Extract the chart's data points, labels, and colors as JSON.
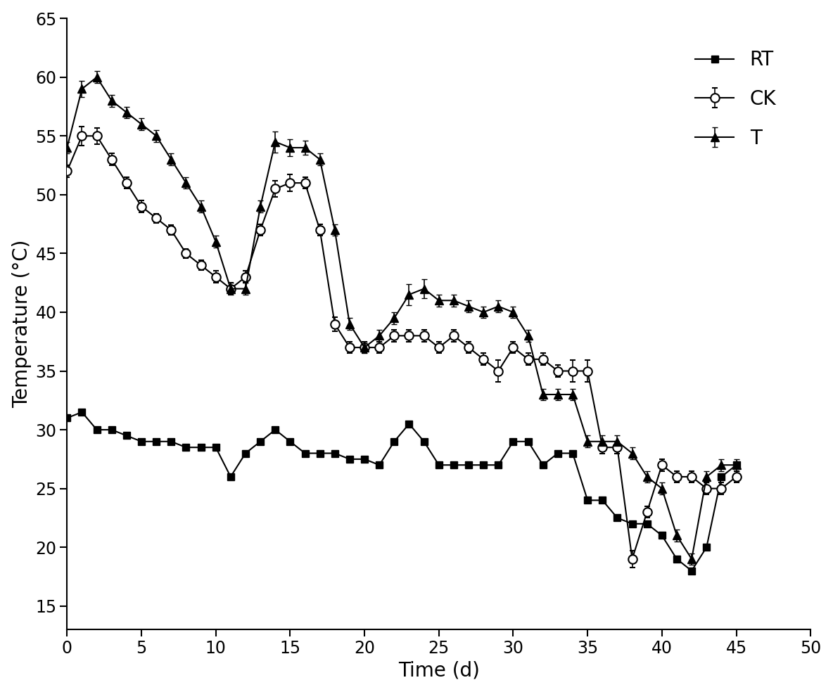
{
  "RT_x": [
    0,
    1,
    2,
    3,
    4,
    5,
    6,
    7,
    8,
    9,
    10,
    11,
    12,
    13,
    14,
    15,
    16,
    17,
    18,
    19,
    20,
    21,
    22,
    23,
    24,
    25,
    26,
    27,
    28,
    29,
    30,
    31,
    32,
    33,
    34,
    35,
    36,
    37,
    38,
    39,
    40,
    41,
    42,
    43,
    44,
    45
  ],
  "RT_y": [
    31,
    31.5,
    30,
    30,
    29.5,
    29,
    29,
    29,
    28.5,
    28.5,
    28.5,
    26,
    28,
    29,
    30,
    29,
    28,
    28,
    28,
    27.5,
    27.5,
    27,
    29,
    30.5,
    29,
    27,
    27,
    27,
    27,
    27,
    29,
    29,
    27,
    28,
    28,
    24,
    24,
    22.5,
    22,
    22,
    21,
    19,
    18,
    20,
    26,
    27
  ],
  "CK_x": [
    0,
    1,
    2,
    3,
    4,
    5,
    6,
    7,
    8,
    9,
    10,
    11,
    12,
    13,
    14,
    15,
    16,
    17,
    18,
    19,
    20,
    21,
    22,
    23,
    24,
    25,
    26,
    27,
    28,
    29,
    30,
    31,
    32,
    33,
    34,
    35,
    36,
    37,
    38,
    39,
    40,
    41,
    42,
    43,
    44,
    45
  ],
  "CK_y": [
    52,
    55,
    55,
    53,
    51,
    49,
    48,
    47,
    45,
    44,
    43,
    42,
    43,
    47,
    50.5,
    51,
    51,
    47,
    39,
    37,
    37,
    37,
    38,
    38,
    38,
    37,
    38,
    37,
    36,
    35,
    37,
    36,
    36,
    35,
    35,
    35,
    28.5,
    28.5,
    19,
    23,
    27,
    26,
    26,
    25,
    25,
    26
  ],
  "CK_yerr": [
    0.5,
    0.8,
    0.7,
    0.5,
    0.5,
    0.5,
    0.4,
    0.4,
    0.4,
    0.4,
    0.5,
    0.5,
    0.5,
    0.5,
    0.7,
    0.7,
    0.5,
    0.5,
    0.6,
    0.5,
    0.5,
    0.5,
    0.5,
    0.5,
    0.5,
    0.5,
    0.5,
    0.5,
    0.5,
    0.9,
    0.5,
    0.5,
    0.5,
    0.5,
    0.9,
    0.9,
    0.5,
    0.5,
    0.7,
    0.5,
    0.5,
    0.5,
    0.5,
    0.5,
    0.5,
    0.5
  ],
  "T_x": [
    0,
    1,
    2,
    3,
    4,
    5,
    6,
    7,
    8,
    9,
    10,
    11,
    12,
    13,
    14,
    15,
    16,
    17,
    18,
    19,
    20,
    21,
    22,
    23,
    24,
    25,
    26,
    27,
    28,
    29,
    30,
    31,
    32,
    33,
    34,
    35,
    36,
    37,
    38,
    39,
    40,
    41,
    42,
    43,
    44,
    45
  ],
  "T_y": [
    54,
    59,
    60,
    58,
    57,
    56,
    55,
    53,
    51,
    49,
    46,
    42,
    42,
    49,
    54.5,
    54,
    54,
    53,
    47,
    39,
    37,
    38,
    39.5,
    41.5,
    42,
    41,
    41,
    40.5,
    40,
    40.5,
    40,
    38,
    33,
    33,
    33,
    29,
    29,
    29,
    28,
    26,
    25,
    21,
    19,
    26,
    27,
    27
  ],
  "T_yerr": [
    0.5,
    0.7,
    0.5,
    0.5,
    0.5,
    0.5,
    0.5,
    0.5,
    0.5,
    0.5,
    0.5,
    0.5,
    0.5,
    0.5,
    0.9,
    0.7,
    0.6,
    0.5,
    0.5,
    0.5,
    0.5,
    0.5,
    0.5,
    0.9,
    0.8,
    0.5,
    0.5,
    0.5,
    0.5,
    0.5,
    0.5,
    0.5,
    0.5,
    0.5,
    0.5,
    0.5,
    0.5,
    0.5,
    0.5,
    0.5,
    0.5,
    0.5,
    0.5,
    0.5,
    0.5,
    0.5
  ],
  "xlabel": "Time (d)",
  "ylabel": "Temperature (°C)",
  "xlim": [
    0,
    50
  ],
  "ylim": [
    13,
    65
  ],
  "xticks": [
    0,
    5,
    10,
    15,
    20,
    25,
    30,
    35,
    40,
    45,
    50
  ],
  "yticks": [
    15,
    20,
    25,
    30,
    35,
    40,
    45,
    50,
    55,
    60,
    65
  ],
  "line_color": "#000000",
  "bg_color": "#ffffff",
  "legend_labels": [
    "RT",
    "CK",
    "T"
  ],
  "markersize_sq": 7,
  "markersize_circ": 9,
  "markersize_tri": 9,
  "linewidth": 1.5
}
